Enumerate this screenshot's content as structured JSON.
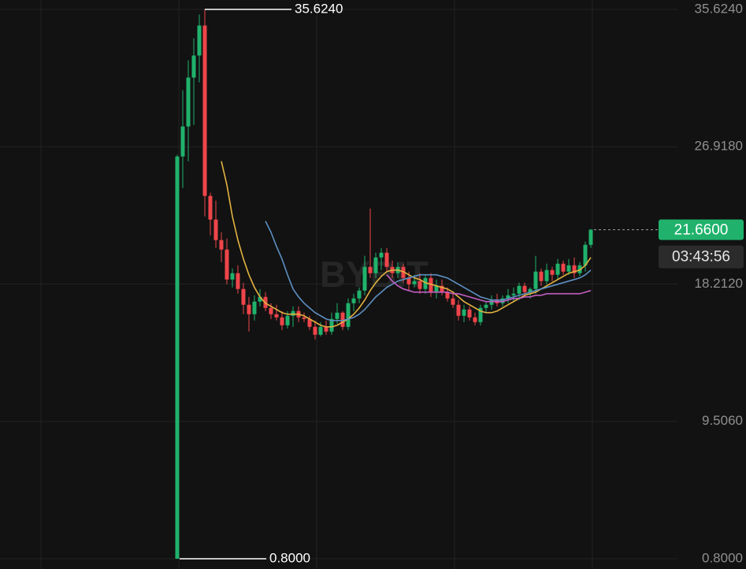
{
  "chart_data": {
    "type": "candlestick",
    "watermark": "BYBIT",
    "up_color": "#20b26c",
    "down_color": "#ef454a",
    "open": [
      0.8,
      26.3,
      28.2,
      31.3,
      32.7,
      34.6,
      23.8,
      22.3,
      21.0,
      20.4,
      18.5,
      18.9,
      17.9,
      16.9,
      16.3,
      17.1,
      17.4,
      16.7,
      16.3,
      16.1,
      15.6,
      16.2,
      16.5,
      16.1,
      16.0,
      15.5,
      15.0,
      15.5,
      15.2,
      16.0,
      16.4,
      15.5,
      17.0,
      17.3,
      17.8,
      19.3,
      18.9,
      19.9,
      20.2,
      19.3,
      18.9,
      19.3,
      18.6,
      18.2,
      18.4,
      17.9,
      18.6,
      17.7,
      18.1,
      17.7,
      17.3,
      16.9,
      16.2,
      16.6,
      16.1,
      15.8,
      16.7,
      16.9,
      17.2,
      17.0,
      17.3,
      17.5,
      17.6,
      18.1,
      17.7,
      17.9,
      19.0,
      18.4,
      19.1,
      18.8,
      19.5,
      19.0,
      19.4,
      18.9,
      19.4,
      20.7
    ],
    "high": [
      26.4,
      30.5,
      32.4,
      33.8,
      35.3,
      35.624,
      24.0,
      23.5,
      21.5,
      21.1,
      19.2,
      19.4,
      18.3,
      17.4,
      17.5,
      17.9,
      17.7,
      17.0,
      16.9,
      16.5,
      16.5,
      16.8,
      16.8,
      16.4,
      16.2,
      15.9,
      15.8,
      15.9,
      16.4,
      17.0,
      16.5,
      17.3,
      17.6,
      18.0,
      20.0,
      23.0,
      20.2,
      20.5,
      20.5,
      19.7,
      19.6,
      19.5,
      19.0,
      18.8,
      18.9,
      18.8,
      18.9,
      18.5,
      18.5,
      18.0,
      17.6,
      17.2,
      16.9,
      16.8,
      16.4,
      16.9,
      17.1,
      17.5,
      17.6,
      17.5,
      17.9,
      18.0,
      18.3,
      18.3,
      18.0,
      20.0,
      19.2,
      19.5,
      19.3,
      19.8,
      19.7,
      19.8,
      19.9,
      19.6,
      20.9,
      21.7
    ],
    "low": [
      0.8,
      24.3,
      26.0,
      28.3,
      31.0,
      22.5,
      21.3,
      20.5,
      19.6,
      18.2,
      18.0,
      17.6,
      16.3,
      15.2,
      15.9,
      16.8,
      16.5,
      16.0,
      15.9,
      15.3,
      15.4,
      15.5,
      15.8,
      15.8,
      15.3,
      14.7,
      14.9,
      15.0,
      15.0,
      15.7,
      15.3,
      15.3,
      16.5,
      17.0,
      17.5,
      18.6,
      18.6,
      19.1,
      19.0,
      18.6,
      18.6,
      18.3,
      17.8,
      18.0,
      17.6,
      17.6,
      17.4,
      17.3,
      17.5,
      17.1,
      16.7,
      15.9,
      15.8,
      15.9,
      15.6,
      15.6,
      16.4,
      16.6,
      16.8,
      16.8,
      17.0,
      17.1,
      17.2,
      17.4,
      17.3,
      17.6,
      18.1,
      18.2,
      18.4,
      18.5,
      18.8,
      18.8,
      18.6,
      18.7,
      19.0,
      20.5
    ],
    "close": [
      26.3,
      28.2,
      31.3,
      32.7,
      34.6,
      23.8,
      22.3,
      21.0,
      20.4,
      18.5,
      18.9,
      17.9,
      16.9,
      16.3,
      17.1,
      17.4,
      16.7,
      16.3,
      16.1,
      15.6,
      16.2,
      16.5,
      16.1,
      16.0,
      15.5,
      15.0,
      15.5,
      15.2,
      16.0,
      16.4,
      15.5,
      17.0,
      17.3,
      17.8,
      19.3,
      18.9,
      19.9,
      20.2,
      19.3,
      18.9,
      19.3,
      18.6,
      18.2,
      18.4,
      17.9,
      18.6,
      17.7,
      18.1,
      17.7,
      17.3,
      16.9,
      16.2,
      16.6,
      16.1,
      15.8,
      16.7,
      16.9,
      17.2,
      17.0,
      17.3,
      17.5,
      17.6,
      18.1,
      17.7,
      17.9,
      19.0,
      18.4,
      19.1,
      18.8,
      19.5,
      19.0,
      19.4,
      18.9,
      19.4,
      20.7,
      21.66
    ],
    "overlays": [
      {
        "color": "#e3b341",
        "values": [
          null,
          null,
          null,
          null,
          null,
          null,
          null,
          null,
          26.0,
          24.5,
          22.5,
          21.0,
          19.8,
          18.8,
          18.0,
          17.4,
          17.0,
          16.8,
          16.6,
          16.4,
          16.3,
          16.3,
          16.3,
          16.2,
          16.0,
          15.8,
          15.6,
          15.5,
          15.5,
          15.6,
          15.8,
          16.0,
          16.3,
          16.7,
          17.2,
          17.8,
          18.3,
          18.7,
          19.0,
          19.1,
          19.1,
          19.0,
          18.8,
          18.6,
          18.5,
          18.3,
          18.2,
          18.1,
          18.0,
          17.9,
          17.7,
          17.4,
          17.1,
          16.9,
          16.7,
          16.5,
          16.4,
          16.4,
          16.5,
          16.7,
          16.9,
          17.1,
          17.3,
          17.5,
          17.6,
          17.7,
          17.9,
          18.1,
          18.3,
          18.5,
          18.7,
          18.9,
          19.0,
          19.1,
          19.4,
          19.9
        ]
      },
      {
        "color": "#5d8fc2",
        "values": [
          null,
          null,
          null,
          null,
          null,
          null,
          null,
          null,
          null,
          null,
          null,
          null,
          null,
          null,
          null,
          null,
          22.2,
          21.5,
          20.6,
          19.8,
          18.8,
          17.9,
          17.4,
          17.0,
          16.7,
          16.4,
          16.2,
          16.0,
          15.9,
          15.9,
          15.9,
          16.0,
          16.1,
          16.3,
          16.6,
          17.0,
          17.4,
          17.7,
          18.0,
          18.2,
          18.4,
          18.5,
          18.6,
          18.7,
          18.8,
          18.8,
          18.8,
          18.8,
          18.7,
          18.6,
          18.4,
          18.2,
          18.0,
          17.8,
          17.6,
          17.4,
          17.3,
          17.2,
          17.2,
          17.2,
          17.3,
          17.4,
          17.5,
          17.6,
          17.7,
          17.8,
          17.9,
          18.0,
          18.1,
          18.2,
          18.3,
          18.4,
          18.5,
          18.6,
          18.8,
          19.1
        ]
      },
      {
        "color": "#c45ec4",
        "values": [
          null,
          null,
          null,
          null,
          null,
          null,
          null,
          null,
          null,
          null,
          null,
          null,
          null,
          null,
          null,
          null,
          null,
          null,
          null,
          null,
          null,
          null,
          null,
          null,
          null,
          null,
          null,
          null,
          null,
          null,
          null,
          null,
          null,
          null,
          null,
          null,
          null,
          null,
          18.8,
          18.4,
          18.1,
          17.9,
          17.8,
          17.7,
          17.7,
          17.7,
          17.7,
          17.7,
          17.7,
          17.7,
          17.6,
          17.6,
          17.5,
          17.4,
          17.3,
          17.2,
          17.1,
          17.1,
          17.1,
          17.1,
          17.2,
          17.3,
          17.3,
          17.4,
          17.4,
          17.5,
          17.5,
          17.6,
          17.6,
          17.6,
          17.6,
          17.6,
          17.6,
          17.6,
          17.7,
          17.8
        ]
      }
    ],
    "ylim": [
      0.15,
      36.22
    ],
    "yticks": [
      {
        "value": 35.624,
        "label": "35.6240"
      },
      {
        "value": 26.918,
        "label": "26.9180"
      },
      {
        "value": 18.212,
        "label": "18.2120"
      },
      {
        "value": 9.506,
        "label": "9.5060"
      },
      {
        "value": 0.8,
        "label": "0.8000"
      }
    ],
    "grid": true,
    "max_marker": {
      "value": 35.624,
      "label": "35.6240"
    },
    "min_marker": {
      "value": 0.8,
      "label": "0.8000"
    },
    "last_price": {
      "value": 21.66,
      "label": "21.6600"
    },
    "countdown": "03:43:56"
  }
}
